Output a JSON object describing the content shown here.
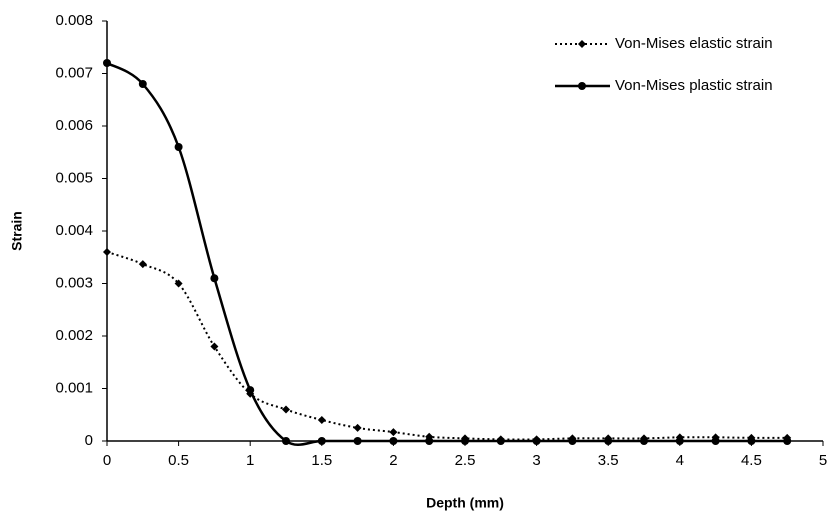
{
  "chart_data": {
    "type": "line",
    "x_label": "Depth (mm)",
    "y_label": "Strain",
    "x": [
      0,
      0.25,
      0.5,
      0.75,
      1,
      1.25,
      1.5,
      1.75,
      2,
      2.25,
      2.5,
      2.75,
      3,
      3.25,
      3.5,
      3.75,
      4,
      4.25,
      4.5,
      4.75
    ],
    "series": [
      {
        "name": "Von-Mises elastic strain",
        "color": "#000000",
        "dash": "dotted",
        "marker": "diamond",
        "values": [
          0.0036,
          0.00337,
          0.003,
          0.0018,
          0.0009,
          0.0006,
          0.0004,
          0.00025,
          0.00017,
          8e-05,
          5e-05,
          3e-05,
          3e-05,
          5e-05,
          5e-05,
          5e-05,
          7e-05,
          7e-05,
          6e-05,
          6e-05
        ]
      },
      {
        "name": "Von-Mises plastic strain",
        "color": "#000000",
        "dash": "solid",
        "marker": "circle",
        "values": [
          0.0072,
          0.0068,
          0.0056,
          0.0031,
          0.00097,
          0,
          0,
          0,
          0,
          0,
          0,
          0,
          0,
          0,
          0,
          0,
          0,
          0,
          0,
          0
        ]
      }
    ],
    "xlim": [
      0,
      5
    ],
    "xticks": [
      0,
      0.5,
      1,
      1.5,
      2,
      2.5,
      3,
      3.5,
      4,
      4.5,
      5
    ],
    "ylim": [
      0,
      0.008
    ],
    "yticks": [
      0,
      0.001,
      0.002,
      0.003,
      0.004,
      0.005,
      0.006,
      0.007,
      0.008
    ],
    "grid": false,
    "legend": "top-right",
    "smooth": true
  }
}
